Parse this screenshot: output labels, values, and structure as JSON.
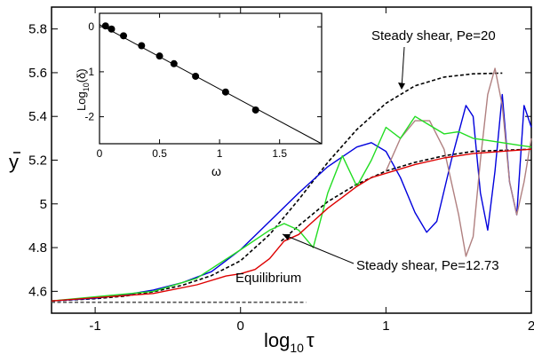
{
  "chart_data": [
    {
      "type": "line",
      "xlabel": "log",
      "xlabel_sub": "10",
      "xlabel_sym": "τ",
      "ylabel": "y",
      "xlim": [
        -1.3,
        2.0
      ],
      "ylim": [
        4.5,
        5.9
      ],
      "xticks": [
        -1,
        0,
        1,
        2
      ],
      "yticks": [
        4.6,
        4.8,
        5.0,
        5.2,
        5.4,
        5.6,
        5.8
      ],
      "xtick_labels": [
        "-1",
        "0",
        "1",
        "2"
      ],
      "ytick_labels": [
        "4.6",
        "4.8",
        "5",
        "5.2",
        "5.4",
        "5.6",
        "5.8"
      ],
      "annotations": {
        "steady_20": "Steady shear, Pe=20",
        "steady_1273": "Steady shear, Pe=12.73",
        "equilibrium": "Equilibrium"
      },
      "colors": {
        "steady": "#000000",
        "equilibrium": "#555555",
        "blue": "#0000dd",
        "green": "#22dd22",
        "red": "#dd0000",
        "brown": "#b08080"
      },
      "series": [
        {
          "style": "dashed",
          "color": "#000000",
          "x": [
            -1.3,
            -1.0,
            -0.8,
            -0.6,
            -0.4,
            -0.2,
            0.0,
            0.2,
            0.4,
            0.6,
            0.8,
            1.0,
            1.2,
            1.4,
            1.6,
            1.8
          ],
          "y": [
            4.556,
            4.566,
            4.578,
            4.598,
            4.628,
            4.672,
            4.74,
            4.86,
            5.02,
            5.19,
            5.34,
            5.46,
            5.54,
            5.58,
            5.595,
            5.598
          ]
        },
        {
          "style": "dashed",
          "color": "#000000",
          "x": [
            0.28,
            0.4,
            0.6,
            0.8,
            1.0,
            1.2,
            1.4,
            1.6,
            1.8,
            2.0
          ],
          "y": [
            4.83,
            4.9,
            5.01,
            5.09,
            5.15,
            5.19,
            5.22,
            5.24,
            5.245,
            5.25
          ]
        },
        {
          "style": "dashed",
          "color": "#555555",
          "x": [
            -1.3,
            0.45
          ],
          "y": [
            4.55,
            4.55
          ]
        },
        {
          "style": "solid",
          "color": "#0000dd",
          "x": [
            -1.3,
            -1.0,
            -0.8,
            -0.6,
            -0.4,
            -0.2,
            0.0,
            0.2,
            0.4,
            0.6,
            0.8,
            0.9,
            1.0,
            1.1,
            1.2,
            1.28,
            1.35,
            1.45,
            1.55,
            1.6,
            1.65,
            1.7,
            1.75,
            1.8,
            1.85,
            1.9,
            1.95,
            2.0
          ],
          "y": [
            4.556,
            4.568,
            4.583,
            4.606,
            4.64,
            4.69,
            4.79,
            4.92,
            5.05,
            5.17,
            5.26,
            5.28,
            5.24,
            5.12,
            4.96,
            4.87,
            4.92,
            5.2,
            5.45,
            5.4,
            5.05,
            4.88,
            5.15,
            5.5,
            5.1,
            4.95,
            5.45,
            5.35
          ]
        },
        {
          "style": "solid",
          "color": "#b08080",
          "x": [
            1.0,
            1.1,
            1.2,
            1.3,
            1.4,
            1.5,
            1.55,
            1.6,
            1.65,
            1.7,
            1.75,
            1.8,
            1.85,
            1.9,
            1.95,
            2.0
          ],
          "y": [
            5.15,
            5.3,
            5.38,
            5.38,
            5.25,
            4.95,
            4.76,
            4.85,
            5.2,
            5.5,
            5.62,
            5.45,
            5.1,
            4.95,
            5.1,
            5.3
          ]
        },
        {
          "style": "solid",
          "color": "#22dd22",
          "x": [
            -1.3,
            -0.6,
            -0.3,
            0.0,
            0.2,
            0.3,
            0.4,
            0.5,
            0.6,
            0.7,
            0.8,
            0.9,
            1.0,
            1.1,
            1.2,
            1.3,
            1.4,
            1.5,
            1.6,
            1.7,
            1.8,
            1.9,
            2.0
          ],
          "y": [
            4.556,
            4.6,
            4.66,
            4.79,
            4.88,
            4.91,
            4.88,
            4.8,
            5.05,
            5.22,
            5.08,
            5.2,
            5.35,
            5.3,
            5.4,
            5.36,
            5.32,
            5.33,
            5.3,
            5.29,
            5.28,
            5.27,
            5.26
          ]
        },
        {
          "style": "solid",
          "color": "#dd0000",
          "x": [
            -1.3,
            -0.6,
            -0.3,
            -0.1,
            0.0,
            0.1,
            0.2,
            0.3,
            0.4,
            0.5,
            0.6,
            0.7,
            0.8,
            0.9,
            1.0,
            1.2,
            1.4,
            1.6,
            1.8,
            2.0
          ],
          "y": [
            4.556,
            4.59,
            4.63,
            4.67,
            4.68,
            4.7,
            4.75,
            4.83,
            4.86,
            4.92,
            4.98,
            5.03,
            5.08,
            5.12,
            5.14,
            5.18,
            5.21,
            5.23,
            5.24,
            5.25
          ]
        }
      ]
    },
    {
      "type": "line",
      "xlabel": "ω",
      "ylabel": "Log",
      "ylabel_sub": "10",
      "ylabel_rest": "(δ)",
      "xlim": [
        0,
        1.85
      ],
      "ylim": [
        -2.6,
        0.3
      ],
      "xticks": [
        0,
        0.5,
        1.0,
        1.5
      ],
      "yticks": [
        0,
        -1,
        -2
      ],
      "xtick_labels": [
        "0",
        "0.5",
        "1",
        "1.5"
      ],
      "ytick_labels": [
        "0",
        "-1",
        "-2"
      ],
      "fit_line": {
        "x": [
          0,
          1.85
        ],
        "y": [
          0.05,
          -2.6
        ]
      },
      "points": {
        "x": [
          0.05,
          0.1,
          0.2,
          0.35,
          0.5,
          0.62,
          0.8,
          1.05,
          1.3
        ],
        "y": [
          0.02,
          -0.05,
          -0.2,
          -0.42,
          -0.65,
          -0.82,
          -1.1,
          -1.45,
          -1.85
        ]
      }
    }
  ]
}
